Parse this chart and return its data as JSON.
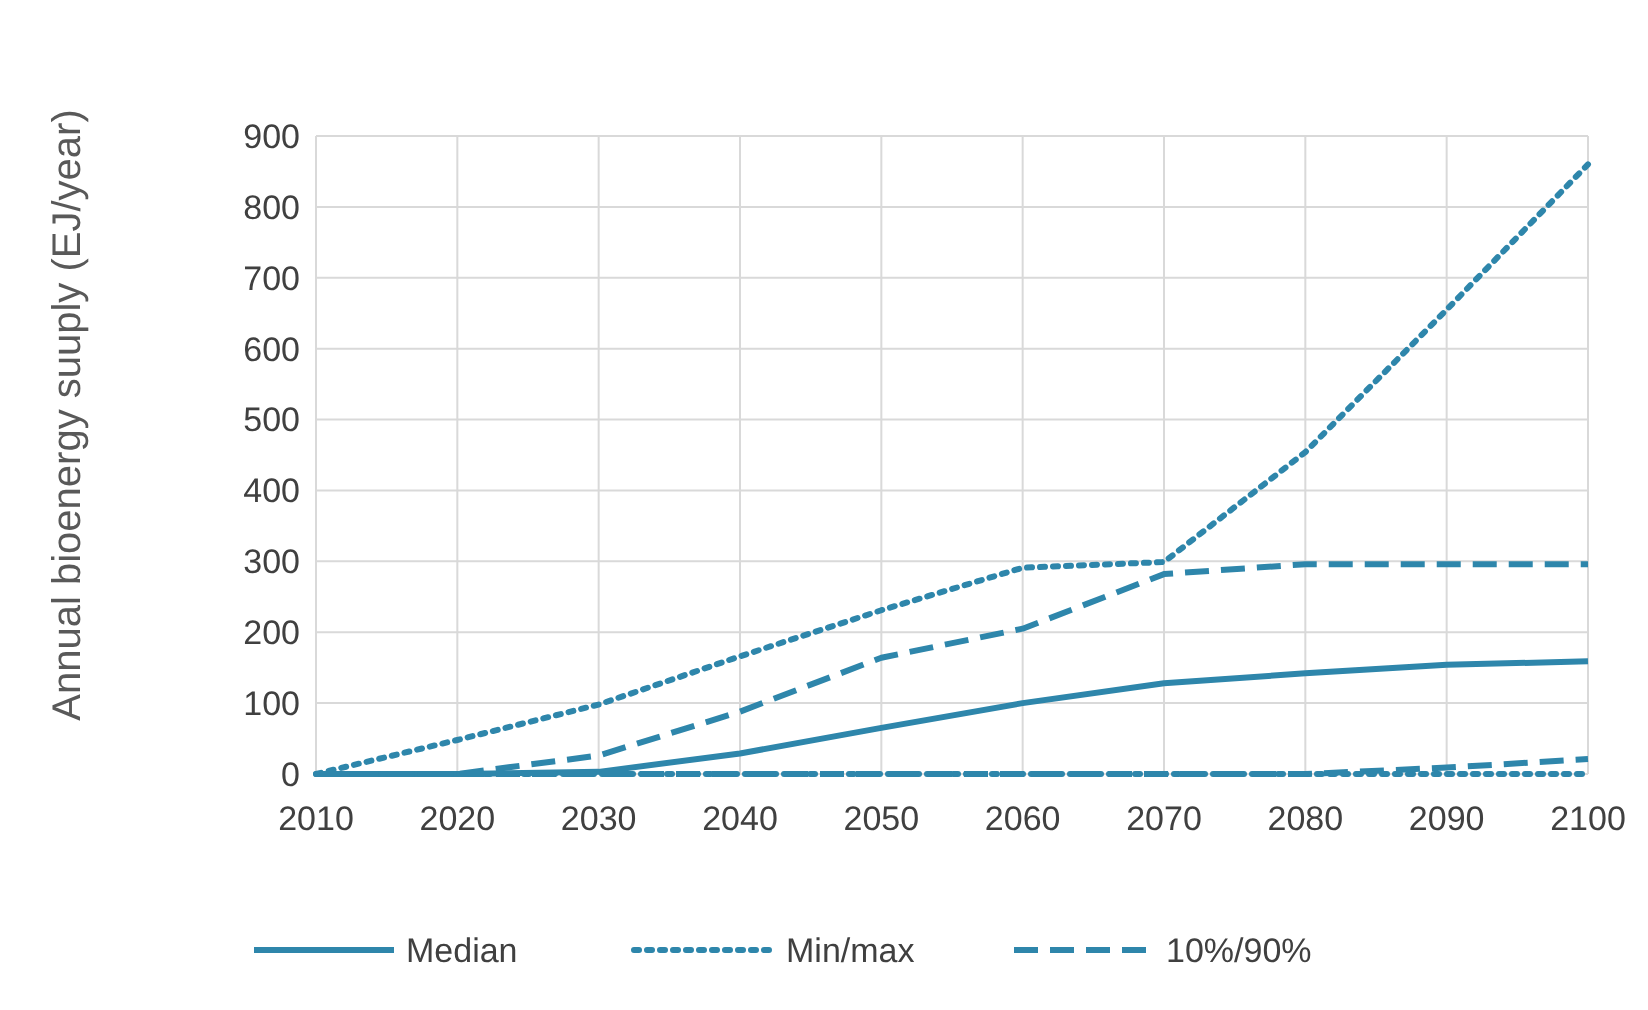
{
  "chart_data": {
    "type": "line",
    "ylabel": "Annual bioenergy suuply (EJ/year)",
    "x": [
      2010,
      2020,
      2030,
      2040,
      2050,
      2060,
      2070,
      2080,
      2090,
      2100
    ],
    "xlim": [
      2010,
      2100
    ],
    "xticks": [
      2010,
      2020,
      2030,
      2040,
      2050,
      2060,
      2070,
      2080,
      2090,
      2100
    ],
    "ylim": [
      0,
      900
    ],
    "yticks": [
      0,
      100,
      200,
      300,
      400,
      500,
      600,
      700,
      800,
      900
    ],
    "grid": true,
    "legend": "bottom",
    "marker": "none",
    "series": [
      {
        "name": "Median",
        "color": "#2e86ab",
        "line_style": "solid",
        "values": [
          0,
          0,
          3,
          29,
          65,
          100,
          128,
          142,
          154,
          159
        ]
      },
      {
        "name": "Min/max",
        "color": "#2e86ab",
        "line_style": "dotted",
        "values": [
          0,
          48,
          98,
          166,
          231,
          291,
          299,
          454,
          655,
          860
        ]
      },
      {
        "color": "#2e86ab",
        "line_style": "dotted",
        "values": [
          0,
          0,
          0,
          0,
          0,
          0,
          0,
          0,
          0,
          0
        ]
      },
      {
        "name": "10%/90%",
        "color": "#2e86ab",
        "line_style": "dashed",
        "values": [
          0,
          0,
          26,
          88,
          164,
          205,
          282,
          296,
          296,
          296
        ]
      },
      {
        "color": "#2e86ab",
        "line_style": "dashed",
        "values": [
          0,
          0,
          0,
          0,
          0,
          0,
          0,
          0,
          9,
          21
        ]
      }
    ]
  }
}
